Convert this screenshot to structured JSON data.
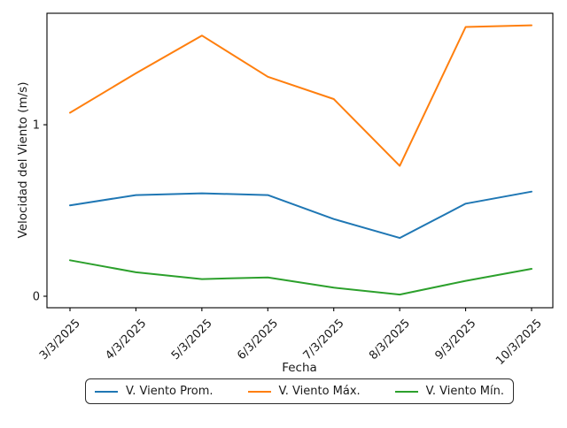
{
  "figure": {
    "background": "#ffffff",
    "text_color": "#1a1a1a"
  },
  "chart_data": {
    "type": "line",
    "title": "",
    "xlabel": "Fecha",
    "ylabel": "Velocidad del Viento (m/s)",
    "categories": [
      "3/3/2025",
      "4/3/2025",
      "5/3/2025",
      "6/3/2025",
      "7/3/2025",
      "8/3/2025",
      "9/3/2025",
      "10/3/2025"
    ],
    "y_ticks": [
      0,
      1
    ],
    "ylim": [
      -0.067,
      1.65
    ],
    "grid": false,
    "legend_position": "bottom-center",
    "x_tick_rotation_deg": 45,
    "series": [
      {
        "name": "V. Viento Prom.",
        "color": "#1f77b4",
        "values": [
          0.53,
          0.59,
          0.6,
          0.59,
          0.45,
          0.34,
          0.54,
          0.61
        ]
      },
      {
        "name": "V. Viento Máx.",
        "color": "#ff7f0e",
        "values": [
          1.07,
          1.3,
          1.52,
          1.28,
          1.15,
          0.76,
          1.57,
          1.58
        ]
      },
      {
        "name": "V. Viento Mín.",
        "color": "#2ca02c",
        "values": [
          0.21,
          0.14,
          0.1,
          0.11,
          0.05,
          0.01,
          0.09,
          0.16
        ]
      }
    ]
  }
}
